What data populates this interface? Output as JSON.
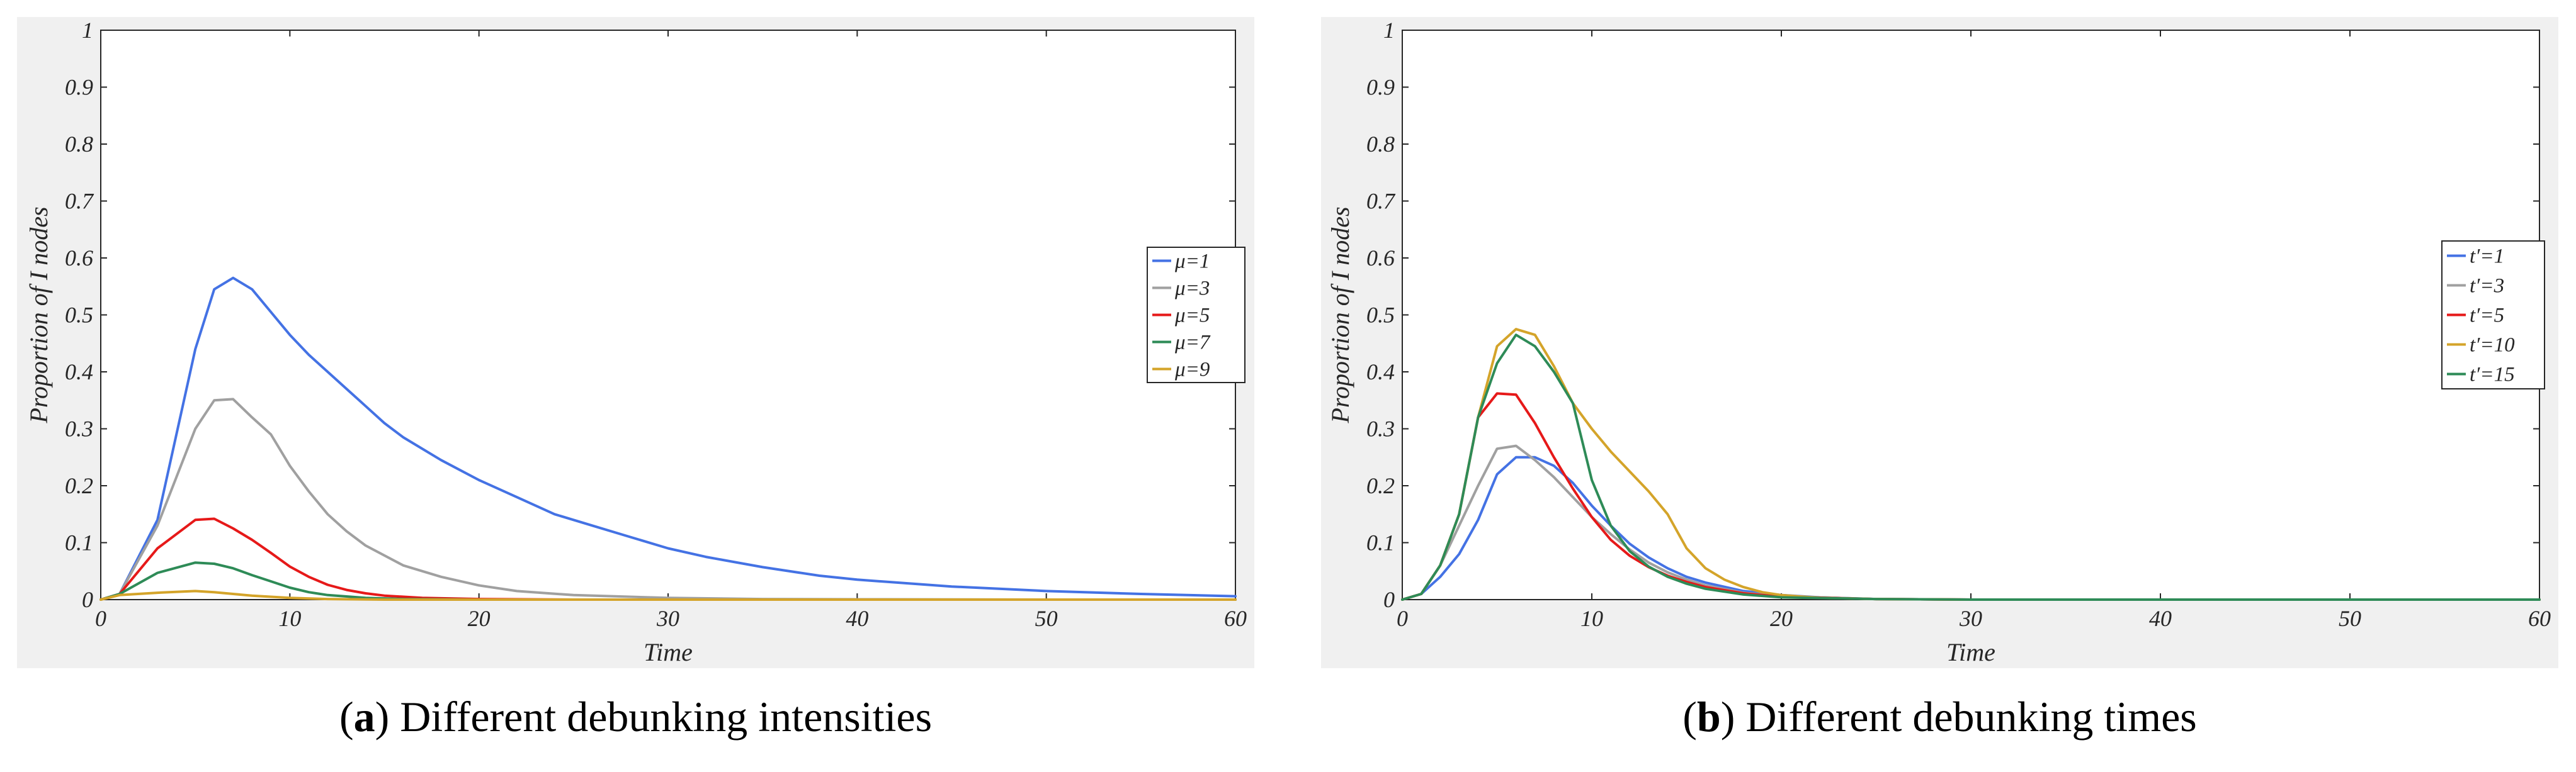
{
  "colors": {
    "blue": "#4472e4",
    "gray": "#a0a0a0",
    "red": "#e61919",
    "green": "#2e8b57",
    "gold": "#d4a42a"
  },
  "chart_data": [
    {
      "type": "line",
      "panel": "a",
      "caption_label": "a",
      "caption_text": ") Different debunking intensities",
      "title": "",
      "xlabel": "Time",
      "ylabel": "Proportion of  I nodes",
      "xlim": [
        0,
        60
      ],
      "ylim": [
        0,
        1
      ],
      "xticks": [
        "0",
        "10",
        "20",
        "30",
        "40",
        "50",
        "60"
      ],
      "yticks": [
        "0",
        "0.1",
        "0.2",
        "0.3",
        "0.4",
        "0.5",
        "0.6",
        "0.7",
        "0.8",
        "0.9",
        "1"
      ],
      "legend_position": "right",
      "series": [
        {
          "name": "μ=1",
          "color": "blue",
          "x": [
            0,
            1,
            3,
            5,
            6,
            7,
            8,
            9,
            10,
            11,
            12,
            13,
            14,
            15,
            16,
            18,
            20,
            22,
            24,
            26,
            28,
            30,
            32,
            35,
            38,
            40,
            45,
            50,
            55,
            60
          ],
          "y": [
            0,
            0.01,
            0.14,
            0.44,
            0.545,
            0.565,
            0.545,
            0.505,
            0.465,
            0.43,
            0.4,
            0.37,
            0.34,
            0.31,
            0.285,
            0.245,
            0.21,
            0.18,
            0.15,
            0.13,
            0.11,
            0.09,
            0.075,
            0.057,
            0.042,
            0.035,
            0.023,
            0.015,
            0.01,
            0.006
          ]
        },
        {
          "name": "μ=3",
          "color": "gray",
          "x": [
            0,
            1,
            3,
            5,
            6,
            7,
            8,
            9,
            10,
            11,
            12,
            13,
            14,
            16,
            18,
            20,
            22,
            25,
            30,
            35,
            40,
            50,
            60
          ],
          "y": [
            0,
            0.01,
            0.13,
            0.3,
            0.35,
            0.352,
            0.32,
            0.29,
            0.235,
            0.19,
            0.15,
            0.12,
            0.095,
            0.06,
            0.04,
            0.025,
            0.015,
            0.008,
            0.003,
            0.001,
            0.0005,
            0,
            0
          ]
        },
        {
          "name": "μ=5",
          "color": "red",
          "x": [
            0,
            1,
            3,
            5,
            6,
            7,
            8,
            9,
            10,
            11,
            12,
            13,
            14,
            15,
            17,
            20,
            25,
            30,
            40,
            50,
            60
          ],
          "y": [
            0,
            0.01,
            0.09,
            0.14,
            0.142,
            0.125,
            0.105,
            0.082,
            0.058,
            0.04,
            0.026,
            0.017,
            0.011,
            0.007,
            0.003,
            0.001,
            0,
            0,
            0,
            0,
            0
          ]
        },
        {
          "name": "μ=7",
          "color": "green",
          "x": [
            0,
            1,
            3,
            5,
            6,
            7,
            8,
            9,
            10,
            11,
            12,
            14,
            16,
            20,
            30,
            40,
            50,
            60
          ],
          "y": [
            0,
            0.01,
            0.047,
            0.065,
            0.063,
            0.055,
            0.043,
            0.032,
            0.021,
            0.013,
            0.008,
            0.003,
            0.001,
            0,
            0,
            0,
            0,
            0
          ]
        },
        {
          "name": "μ=9",
          "color": "gold",
          "x": [
            0,
            1,
            3,
            5,
            6,
            7,
            8,
            9,
            10,
            12,
            15,
            20,
            30,
            40,
            50,
            60
          ],
          "y": [
            0,
            0.008,
            0.012,
            0.015,
            0.013,
            0.01,
            0.007,
            0.005,
            0.003,
            0.001,
            0,
            0,
            0,
            0,
            0,
            0
          ]
        }
      ]
    },
    {
      "type": "line",
      "panel": "b",
      "caption_label": "b",
      "caption_text": ") Different debunking times",
      "title": "",
      "xlabel": "Time",
      "ylabel": "Proportion of I nodes",
      "xlim": [
        0,
        60
      ],
      "ylim": [
        0,
        1
      ],
      "xticks": [
        "0",
        "10",
        "20",
        "30",
        "40",
        "50",
        "60"
      ],
      "yticks": [
        "0",
        "0.1",
        "0.2",
        "0.3",
        "0.4",
        "0.5",
        "0.6",
        "0.7",
        "0.8",
        "0.9",
        "1"
      ],
      "legend_position": "right",
      "series": [
        {
          "name": "t′=1",
          "color": "blue",
          "x": [
            0,
            1,
            2,
            3,
            4,
            5,
            6,
            7,
            8,
            9,
            10,
            11,
            12,
            13,
            14,
            15,
            16,
            18,
            20,
            22,
            25,
            30,
            40,
            50,
            60
          ],
          "y": [
            0,
            0.01,
            0.04,
            0.08,
            0.14,
            0.22,
            0.25,
            0.25,
            0.235,
            0.205,
            0.165,
            0.13,
            0.098,
            0.074,
            0.055,
            0.04,
            0.03,
            0.015,
            0.008,
            0.004,
            0.001,
            0,
            0,
            0,
            0
          ]
        },
        {
          "name": "t′=3",
          "color": "gray",
          "x": [
            0,
            1,
            2,
            3,
            4,
            5,
            6,
            7,
            8,
            9,
            10,
            11,
            12,
            13,
            14,
            15,
            16,
            18,
            20,
            25,
            30,
            40,
            50,
            60
          ],
          "y": [
            0,
            0.01,
            0.06,
            0.13,
            0.2,
            0.265,
            0.27,
            0.245,
            0.215,
            0.18,
            0.145,
            0.115,
            0.088,
            0.065,
            0.048,
            0.035,
            0.025,
            0.012,
            0.006,
            0.001,
            0,
            0,
            0,
            0
          ]
        },
        {
          "name": "t′=5",
          "color": "red",
          "x": [
            0,
            1,
            2,
            3,
            4,
            5,
            6,
            7,
            8,
            9,
            10,
            11,
            12,
            13,
            14,
            15,
            16,
            18,
            20,
            25,
            30,
            40,
            50,
            60
          ],
          "y": [
            0,
            0.01,
            0.06,
            0.15,
            0.32,
            0.362,
            0.36,
            0.31,
            0.25,
            0.195,
            0.145,
            0.105,
            0.077,
            0.057,
            0.042,
            0.031,
            0.022,
            0.011,
            0.005,
            0.001,
            0,
            0,
            0,
            0
          ]
        },
        {
          "name": "t′=10",
          "color": "gold",
          "x": [
            0,
            1,
            2,
            3,
            4,
            5,
            6,
            7,
            8,
            9,
            10,
            11,
            12,
            13,
            14,
            15,
            16,
            17,
            18,
            19,
            20,
            22,
            25,
            30,
            40,
            50,
            60
          ],
          "y": [
            0,
            0.01,
            0.06,
            0.15,
            0.32,
            0.445,
            0.475,
            0.465,
            0.41,
            0.345,
            0.3,
            0.26,
            0.225,
            0.19,
            0.15,
            0.09,
            0.055,
            0.035,
            0.022,
            0.013,
            0.008,
            0.003,
            0.001,
            0,
            0,
            0,
            0
          ]
        },
        {
          "name": "t′=15",
          "color": "green",
          "x": [
            0,
            1,
            2,
            3,
            4,
            5,
            6,
            7,
            8,
            9,
            10,
            11,
            12,
            13,
            14,
            15,
            16,
            18,
            20,
            25,
            30,
            40,
            50,
            60
          ],
          "y": [
            0,
            0.01,
            0.06,
            0.15,
            0.32,
            0.415,
            0.465,
            0.445,
            0.4,
            0.345,
            0.21,
            0.13,
            0.085,
            0.058,
            0.04,
            0.028,
            0.019,
            0.009,
            0.004,
            0.001,
            0,
            0,
            0,
            0
          ]
        }
      ]
    }
  ]
}
